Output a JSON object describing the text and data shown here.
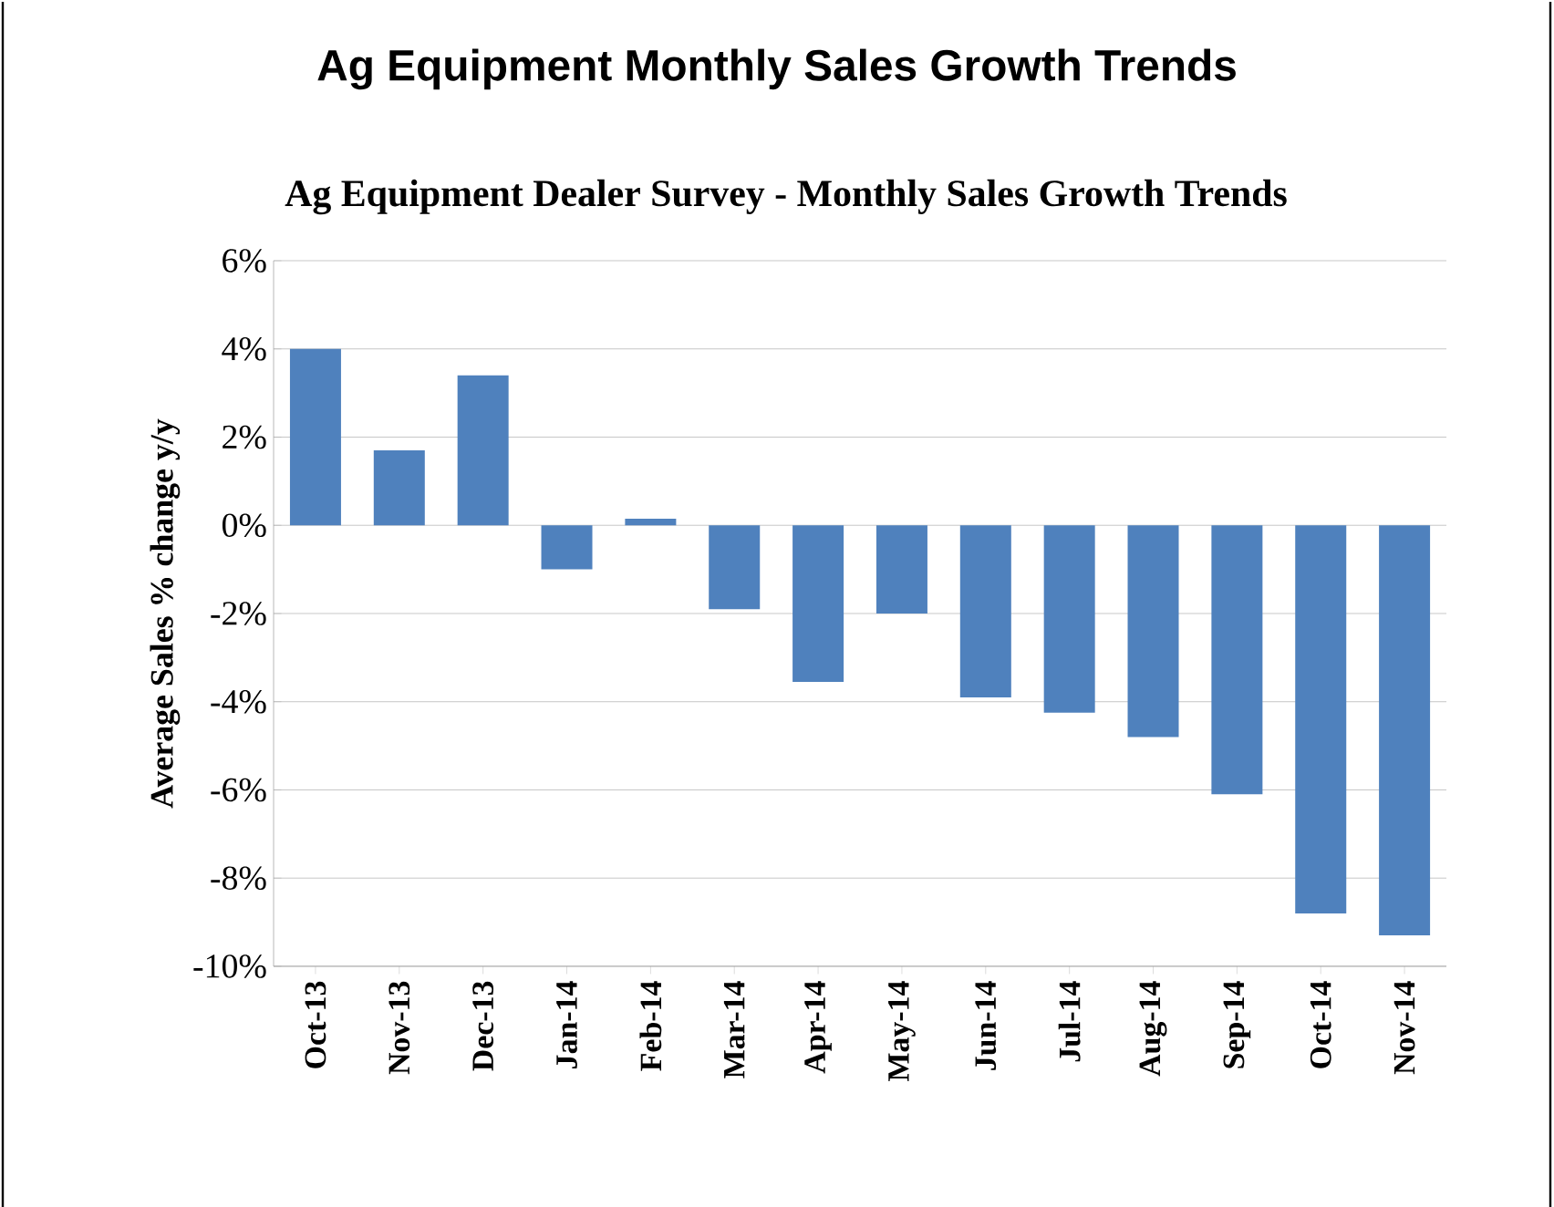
{
  "chart_data": {
    "type": "bar",
    "title": "Ag Equipment Monthly Sales Growth Trends",
    "subtitle": "Ag Equipment Dealer Survey - Monthly Sales Growth Trends",
    "ylabel": "Average Sales % change y/y",
    "categories": [
      "Oct-13",
      "Nov-13",
      "Dec-13",
      "Jan-14",
      "Feb-14",
      "Mar-14",
      "Apr-14",
      "May-14",
      "Jun-14",
      "Jul-14",
      "Aug-14",
      "Sep-14",
      "Oct-14",
      "Nov-14"
    ],
    "values": [
      4.0,
      1.7,
      3.4,
      -1.0,
      0.15,
      -1.9,
      -3.55,
      -2.0,
      -3.9,
      -4.25,
      -4.8,
      -6.1,
      -8.8,
      -9.3
    ],
    "color": "#4f81bd",
    "ylim": [
      -10,
      6
    ],
    "yticks": [
      {
        "value": -10,
        "label": "-10%"
      },
      {
        "value": -8,
        "label": "-8%"
      },
      {
        "value": -6,
        "label": "-6%"
      },
      {
        "value": -4,
        "label": "-4%"
      },
      {
        "value": -2,
        "label": "-2%"
      },
      {
        "value": 0,
        "label": "0%"
      },
      {
        "value": 2,
        "label": "2%"
      },
      {
        "value": 4,
        "label": "4%"
      },
      {
        "value": 6,
        "label": "6%"
      }
    ],
    "grid": "y"
  }
}
